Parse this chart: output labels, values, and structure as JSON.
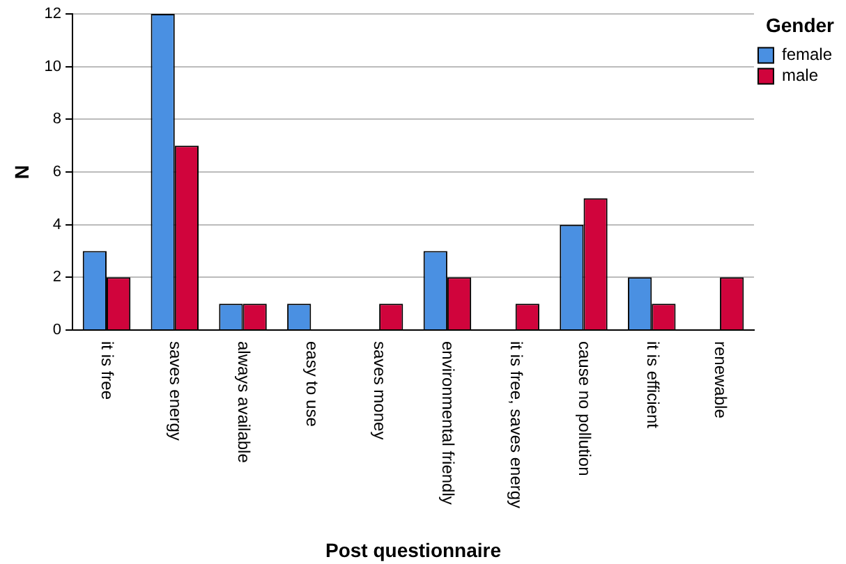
{
  "chart_data": {
    "type": "bar",
    "xlabel": "Post questionnaire",
    "ylabel": "N",
    "legend_title": "Gender",
    "categories": [
      "it is free",
      "saves energy",
      "always available",
      "easy to use",
      "saves money",
      "environmental friendly",
      "it is free, saves energy",
      "cause no pollution",
      "it is efficient",
      "renewable"
    ],
    "series": [
      {
        "name": "female",
        "color": "#4a90e2",
        "values": [
          3,
          12,
          1,
          1,
          0,
          3,
          0,
          4,
          2,
          0
        ]
      },
      {
        "name": "male",
        "color": "#d0043c",
        "values": [
          2,
          7,
          1,
          0,
          1,
          2,
          1,
          5,
          1,
          2
        ]
      }
    ],
    "ylim": [
      0,
      12
    ],
    "yticks": [
      0,
      2,
      4,
      6,
      8,
      10,
      12
    ],
    "grid": "y",
    "legend": "top right"
  }
}
